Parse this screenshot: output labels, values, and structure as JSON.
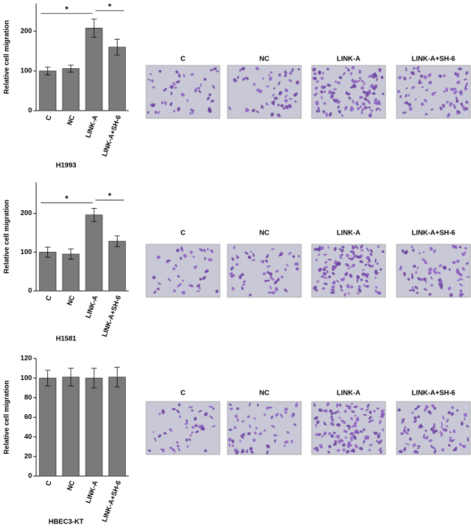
{
  "chart_data": [
    {
      "type": "bar",
      "xlabel": "H1993",
      "ylabel": "Relative cell migration",
      "categories": [
        "C",
        "NC",
        "LINK-A",
        "LINK-A+SH-6"
      ],
      "values": [
        100,
        106,
        208,
        160
      ],
      "errors": [
        10,
        9,
        23,
        20
      ],
      "ylim": [
        0,
        270
      ],
      "yticks": [
        0,
        100,
        200
      ],
      "color": "#7a7a7a",
      "annotations": [
        {
          "text": "*",
          "from": "C",
          "to": "LINK-A"
        },
        {
          "text": "*",
          "from": "LINK-A",
          "to": "LINK-A+SH-6"
        }
      ]
    },
    {
      "type": "bar",
      "xlabel": "H1581",
      "ylabel": "Relative cell migration",
      "categories": [
        "C",
        "NC",
        "LINK-A",
        "LINK-A+SH-6"
      ],
      "values": [
        100,
        95,
        196,
        128
      ],
      "errors": [
        13,
        13,
        17,
        14
      ],
      "ylim": [
        0,
        280
      ],
      "yticks": [
        0,
        100,
        200
      ],
      "color": "#7a7a7a",
      "annotations": [
        {
          "text": "*",
          "from": "C",
          "to": "LINK-A"
        },
        {
          "text": "*",
          "from": "LINK-A",
          "to": "LINK-A+SH-6"
        }
      ]
    },
    {
      "type": "bar",
      "xlabel": "HBEC3-KT",
      "ylabel": "Relative cell migration",
      "categories": [
        "C",
        "NC",
        "LINK-A",
        "LINK-A+SH-6"
      ],
      "values": [
        100,
        101,
        100,
        101
      ],
      "errors": [
        8,
        9,
        10,
        10
      ],
      "ylim": [
        0,
        120
      ],
      "yticks": [
        0,
        20,
        40,
        60,
        80,
        100,
        120
      ],
      "color": "#7a7a7a",
      "annotations": []
    }
  ],
  "panels": [
    {
      "image_labels": [
        "C",
        "NC",
        "LINK-A",
        "LINK-A+SH-6"
      ]
    },
    {
      "image_labels": [
        "C",
        "NC",
        "LINK-A",
        "LINK-A+SH-6"
      ]
    },
    {
      "image_labels": [
        "C",
        "NC",
        "LINK-A",
        "LINK-A+SH-6"
      ]
    }
  ]
}
